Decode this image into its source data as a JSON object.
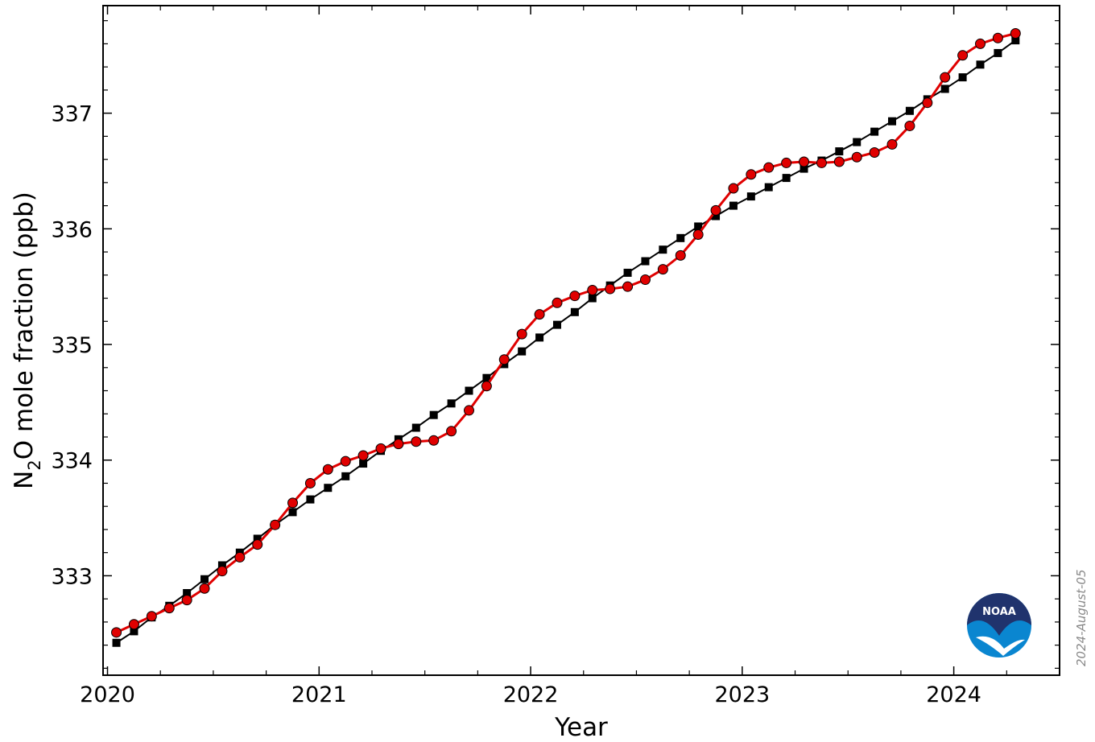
{
  "chart_data": {
    "type": "line",
    "title": "",
    "xlabel": "Year",
    "ylabel_main": "N",
    "ylabel_sub": "2",
    "ylabel_rest": "O mole fraction (ppb)",
    "xlim": [
      2019.979,
      2024.5
    ],
    "ylim": [
      332.14,
      337.93
    ],
    "x_ticks": [
      2020,
      2021,
      2022,
      2023,
      2024
    ],
    "x_tick_labels": [
      "2020",
      "2021",
      "2022",
      "2023",
      "2024"
    ],
    "y_ticks": [
      333,
      334,
      335,
      336,
      337
    ],
    "y_tick_labels": [
      "333",
      "334",
      "335",
      "336",
      "337"
    ],
    "grid": false,
    "date_stamp": "2024-August-05",
    "logo_text": "NOAA",
    "series": [
      {
        "marker": "circle",
        "color": "#e00000",
        "x_start": 2020.042,
        "x_step": 0.08333,
        "values": [
          332.51,
          332.58,
          332.65,
          332.72,
          332.79,
          332.89,
          333.04,
          333.16,
          333.27,
          333.44,
          333.63,
          333.8,
          333.92,
          333.99,
          334.04,
          334.1,
          334.14,
          334.16,
          334.17,
          334.25,
          334.43,
          334.64,
          334.87,
          335.09,
          335.26,
          335.36,
          335.42,
          335.47,
          335.48,
          335.5,
          335.56,
          335.65,
          335.77,
          335.95,
          336.16,
          336.35,
          336.47,
          336.53,
          336.57,
          336.58,
          336.57,
          336.58,
          336.62,
          336.66,
          336.73,
          336.89,
          337.09,
          337.31,
          337.5,
          337.6,
          337.65,
          337.69
        ]
      },
      {
        "marker": "square",
        "color": "#000000",
        "x_start": 2020.042,
        "x_step": 0.08333,
        "values": [
          332.42,
          332.52,
          332.64,
          332.74,
          332.85,
          332.97,
          333.09,
          333.2,
          333.32,
          333.44,
          333.55,
          333.66,
          333.76,
          333.86,
          333.97,
          334.08,
          334.18,
          334.28,
          334.39,
          334.49,
          334.6,
          334.71,
          334.83,
          334.94,
          335.06,
          335.17,
          335.28,
          335.4,
          335.51,
          335.62,
          335.72,
          335.82,
          335.92,
          336.02,
          336.11,
          336.2,
          336.28,
          336.36,
          336.44,
          336.52,
          336.59,
          336.67,
          336.75,
          336.84,
          336.93,
          337.02,
          337.12,
          337.21,
          337.31,
          337.42,
          337.52,
          337.63
        ]
      }
    ]
  }
}
